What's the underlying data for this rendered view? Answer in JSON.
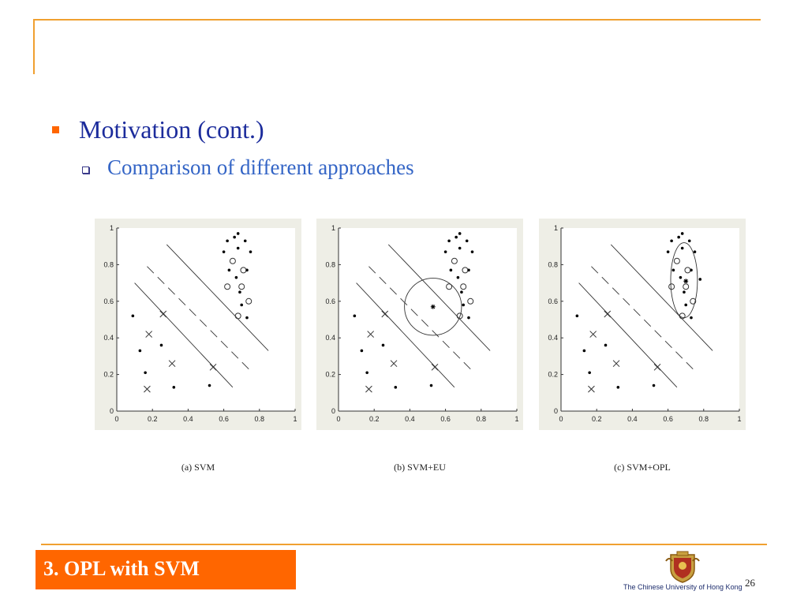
{
  "slide": {
    "heading": "Motivation (cont.)",
    "subheading": "Comparison of different approaches",
    "section": "3. OPL with SVM",
    "university": "The Chinese University of Hong Kong",
    "page_number": "26"
  },
  "colors": {
    "accent_orange": "#ff6600",
    "frame_orange": "#f0a030",
    "heading_blue": "#1c2c9c",
    "subheading_blue": "#3465c6"
  },
  "icons": [
    "square-bullet-icon",
    "hollow-square-bullet-icon",
    "university-crest-icon"
  ],
  "chart_data": [
    {
      "type": "scatter",
      "caption": "(a) SVM",
      "xlim": [
        0,
        1
      ],
      "ylim": [
        0,
        1
      ],
      "xticks": [
        "0",
        "0.2",
        "0.4",
        "0.6",
        "0.8",
        "1"
      ],
      "yticks": [
        "0",
        "0.2",
        "0.4",
        "0.6",
        "0.8",
        "1"
      ],
      "series": [
        {
          "marker": "dot",
          "points": [
            [
              0.09,
              0.52
            ],
            [
              0.13,
              0.33
            ],
            [
              0.16,
              0.21
            ],
            [
              0.25,
              0.36
            ],
            [
              0.32,
              0.13
            ],
            [
              0.52,
              0.14
            ],
            [
              0.62,
              0.93
            ],
            [
              0.66,
              0.95
            ],
            [
              0.68,
              0.97
            ],
            [
              0.72,
              0.93
            ],
            [
              0.75,
              0.87
            ],
            [
              0.68,
              0.89
            ],
            [
              0.6,
              0.87
            ],
            [
              0.73,
              0.77
            ],
            [
              0.63,
              0.77
            ],
            [
              0.67,
              0.73
            ],
            [
              0.69,
              0.65
            ],
            [
              0.7,
              0.58
            ],
            [
              0.73,
              0.51
            ]
          ]
        },
        {
          "marker": "circle",
          "points": [
            [
              0.65,
              0.82
            ],
            [
              0.71,
              0.77
            ],
            [
              0.62,
              0.68
            ],
            [
              0.7,
              0.68
            ],
            [
              0.74,
              0.6
            ],
            [
              0.68,
              0.52
            ]
          ]
        },
        {
          "marker": "x",
          "points": [
            [
              0.26,
              0.53
            ],
            [
              0.18,
              0.42
            ],
            [
              0.31,
              0.26
            ],
            [
              0.17,
              0.12
            ],
            [
              0.54,
              0.24
            ]
          ]
        }
      ],
      "lines": [
        {
          "style": "solid",
          "points": [
            [
              0.1,
              0.7
            ],
            [
              0.65,
              0.13
            ]
          ]
        },
        {
          "style": "dashed",
          "points": [
            [
              0.17,
              0.79
            ],
            [
              0.75,
              0.22
            ]
          ]
        },
        {
          "style": "solid",
          "points": [
            [
              0.28,
              0.91
            ],
            [
              0.85,
              0.33
            ]
          ]
        }
      ]
    },
    {
      "type": "scatter",
      "caption": "(b) SVM+EU",
      "xlim": [
        0,
        1
      ],
      "ylim": [
        0,
        1
      ],
      "xticks": [
        "0",
        "0.2",
        "0.4",
        "0.6",
        "0.8",
        "1"
      ],
      "yticks": [
        "0",
        "0.2",
        "0.4",
        "0.6",
        "0.8",
        "1"
      ],
      "series": [
        {
          "marker": "dot",
          "points": [
            [
              0.09,
              0.52
            ],
            [
              0.13,
              0.33
            ],
            [
              0.16,
              0.21
            ],
            [
              0.25,
              0.36
            ],
            [
              0.32,
              0.13
            ],
            [
              0.52,
              0.14
            ],
            [
              0.62,
              0.93
            ],
            [
              0.66,
              0.95
            ],
            [
              0.68,
              0.97
            ],
            [
              0.72,
              0.93
            ],
            [
              0.75,
              0.87
            ],
            [
              0.68,
              0.89
            ],
            [
              0.6,
              0.87
            ],
            [
              0.73,
              0.77
            ],
            [
              0.63,
              0.77
            ],
            [
              0.67,
              0.73
            ],
            [
              0.69,
              0.65
            ],
            [
              0.7,
              0.58
            ],
            [
              0.73,
              0.51
            ]
          ]
        },
        {
          "marker": "circle",
          "points": [
            [
              0.65,
              0.82
            ],
            [
              0.71,
              0.77
            ],
            [
              0.62,
              0.68
            ],
            [
              0.7,
              0.68
            ],
            [
              0.74,
              0.6
            ],
            [
              0.68,
              0.52
            ]
          ]
        },
        {
          "marker": "x",
          "points": [
            [
              0.26,
              0.53
            ],
            [
              0.18,
              0.42
            ],
            [
              0.31,
              0.26
            ],
            [
              0.17,
              0.12
            ],
            [
              0.54,
              0.24
            ]
          ]
        },
        {
          "marker": "star",
          "points": [
            [
              0.53,
              0.57
            ]
          ]
        }
      ],
      "lines": [
        {
          "style": "solid",
          "points": [
            [
              0.1,
              0.7
            ],
            [
              0.65,
              0.13
            ]
          ]
        },
        {
          "style": "dashed",
          "points": [
            [
              0.17,
              0.79
            ],
            [
              0.75,
              0.22
            ]
          ]
        },
        {
          "style": "solid",
          "points": [
            [
              0.28,
              0.91
            ],
            [
              0.85,
              0.33
            ]
          ]
        }
      ],
      "shapes": [
        {
          "type": "circle",
          "center": [
            0.53,
            0.57
          ],
          "radius": 0.16
        }
      ]
    },
    {
      "type": "scatter",
      "caption": "(c) SVM+OPL",
      "xlim": [
        0,
        1
      ],
      "ylim": [
        0,
        1
      ],
      "xticks": [
        "0",
        "0.2",
        "0.4",
        "0.6",
        "0.8",
        "1"
      ],
      "yticks": [
        "0",
        "0.2",
        "0.4",
        "0.6",
        "0.8",
        "1"
      ],
      "series": [
        {
          "marker": "dot",
          "points": [
            [
              0.09,
              0.52
            ],
            [
              0.13,
              0.33
            ],
            [
              0.16,
              0.21
            ],
            [
              0.25,
              0.36
            ],
            [
              0.32,
              0.13
            ],
            [
              0.52,
              0.14
            ],
            [
              0.62,
              0.93
            ],
            [
              0.66,
              0.95
            ],
            [
              0.68,
              0.97
            ],
            [
              0.72,
              0.93
            ],
            [
              0.75,
              0.87
            ],
            [
              0.68,
              0.89
            ],
            [
              0.6,
              0.87
            ],
            [
              0.73,
              0.77
            ],
            [
              0.63,
              0.77
            ],
            [
              0.67,
              0.73
            ],
            [
              0.69,
              0.65
            ],
            [
              0.7,
              0.58
            ],
            [
              0.73,
              0.51
            ],
            [
              0.78,
              0.72
            ],
            [
              0.7,
              0.71
            ]
          ]
        },
        {
          "marker": "circle",
          "points": [
            [
              0.65,
              0.82
            ],
            [
              0.71,
              0.77
            ],
            [
              0.62,
              0.68
            ],
            [
              0.7,
              0.68
            ],
            [
              0.74,
              0.6
            ],
            [
              0.68,
              0.52
            ]
          ]
        },
        {
          "marker": "x",
          "points": [
            [
              0.26,
              0.53
            ],
            [
              0.18,
              0.42
            ],
            [
              0.31,
              0.26
            ],
            [
              0.17,
              0.12
            ],
            [
              0.54,
              0.24
            ]
          ]
        },
        {
          "marker": "star",
          "points": [
            [
              0.7,
              0.71
            ]
          ]
        }
      ],
      "lines": [
        {
          "style": "solid",
          "points": [
            [
              0.1,
              0.7
            ],
            [
              0.65,
              0.13
            ]
          ]
        },
        {
          "style": "dashed",
          "points": [
            [
              0.17,
              0.79
            ],
            [
              0.75,
              0.22
            ]
          ]
        },
        {
          "style": "solid",
          "points": [
            [
              0.28,
              0.91
            ],
            [
              0.85,
              0.33
            ]
          ]
        }
      ],
      "shapes": [
        {
          "type": "ellipse",
          "center": [
            0.69,
            0.715
          ],
          "rx": 0.075,
          "ry": 0.205
        }
      ]
    }
  ]
}
